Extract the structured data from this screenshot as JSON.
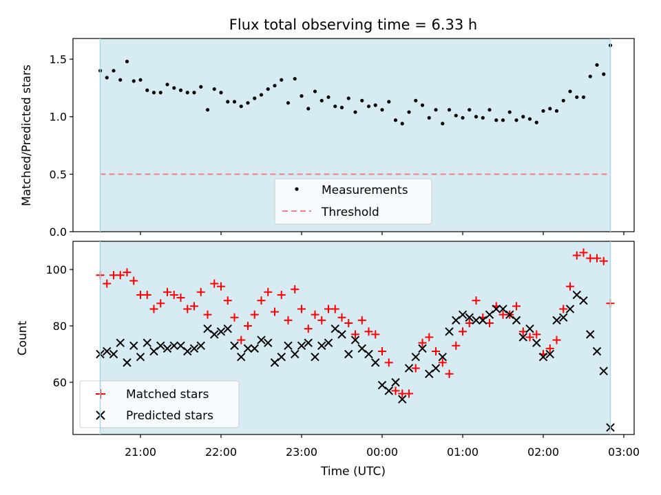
{
  "title": "Flux total observing time = 6.33 h",
  "xlabel": "Time (UTC)",
  "x_tick_labels": [
    "21:00",
    "22:00",
    "23:00",
    "00:00",
    "01:00",
    "02:00",
    "03:00"
  ],
  "colors": {
    "shade": "#add8e6",
    "threshold": "#f08080",
    "matched": "#ff0000",
    "predicted": "#000000",
    "measurements": "#000000"
  },
  "chart_data": [
    {
      "type": "scatter",
      "panel": "top",
      "ylabel": "Matched/Predicted stars",
      "ylim": [
        0,
        1.68
      ],
      "yticks": [
        0,
        0.5,
        1.0,
        1.5
      ],
      "ytick_labels": [
        "0.0",
        "0.5",
        "1.0",
        "1.5"
      ],
      "shaded_span": [
        "20:30",
        "02:50"
      ],
      "legend": {
        "placement": "lower center",
        "entries": [
          "Measurements",
          "Threshold"
        ]
      },
      "threshold": {
        "name": "Threshold",
        "value": 0.5
      },
      "series": [
        {
          "name": "Measurements",
          "x": [
            "20:30",
            "20:35",
            "20:40",
            "20:45",
            "20:50",
            "20:55",
            "21:00",
            "21:05",
            "21:10",
            "21:15",
            "21:20",
            "21:25",
            "21:30",
            "21:35",
            "21:40",
            "21:45",
            "21:50",
            "21:55",
            "22:00",
            "22:05",
            "22:10",
            "22:15",
            "22:20",
            "22:25",
            "22:30",
            "22:35",
            "22:40",
            "22:45",
            "22:50",
            "22:55",
            "23:00",
            "23:05",
            "23:10",
            "23:15",
            "23:20",
            "23:25",
            "23:30",
            "23:35",
            "23:40",
            "23:45",
            "23:50",
            "23:55",
            "00:00",
            "00:05",
            "00:10",
            "00:15",
            "00:20",
            "00:25",
            "00:30",
            "00:35",
            "00:40",
            "00:45",
            "00:50",
            "00:55",
            "01:00",
            "01:05",
            "01:10",
            "01:15",
            "01:20",
            "01:25",
            "01:30",
            "01:35",
            "01:40",
            "01:45",
            "01:50",
            "01:55",
            "02:00",
            "02:05",
            "02:10",
            "02:15",
            "02:20",
            "02:25",
            "02:30",
            "02:35",
            "02:40",
            "02:45",
            "02:50"
          ],
          "values": [
            1.4,
            1.34,
            1.4,
            1.32,
            1.48,
            1.31,
            1.32,
            1.23,
            1.21,
            1.21,
            1.28,
            1.25,
            1.23,
            1.21,
            1.21,
            1.26,
            1.06,
            1.24,
            1.21,
            1.13,
            1.13,
            1.09,
            1.12,
            1.16,
            1.19,
            1.24,
            1.27,
            1.32,
            1.12,
            1.33,
            1.18,
            1.07,
            1.22,
            1.14,
            1.17,
            1.09,
            1.08,
            1.16,
            1.04,
            1.14,
            1.09,
            1.1,
            1.06,
            1.13,
            0.97,
            0.94,
            1.04,
            1.14,
            1.1,
            0.99,
            1.06,
            0.94,
            1.06,
            1.01,
            0.99,
            1.06,
            1.0,
            0.99,
            1.06,
            0.97,
            0.97,
            1.04,
            0.97,
            1.0,
            0.98,
            0.95,
            1.05,
            1.07,
            1.05,
            1.14,
            1.22,
            1.17,
            1.17,
            1.35,
            1.45,
            1.37,
            1.62
          ]
        }
      ]
    },
    {
      "type": "scatter",
      "panel": "bottom",
      "ylabel": "Count",
      "ylim": [
        41.5,
        110
      ],
      "yticks": [
        60,
        80,
        100
      ],
      "ytick_labels": [
        "60",
        "80",
        "100"
      ],
      "shaded_span": [
        "20:30",
        "02:50"
      ],
      "legend": {
        "placement": "lower left",
        "entries": [
          "Matched stars",
          "Predicted stars"
        ]
      },
      "x": [
        "20:30",
        "20:35",
        "20:40",
        "20:45",
        "20:50",
        "20:55",
        "21:00",
        "21:05",
        "21:10",
        "21:15",
        "21:20",
        "21:25",
        "21:30",
        "21:35",
        "21:40",
        "21:45",
        "21:50",
        "21:55",
        "22:00",
        "22:05",
        "22:10",
        "22:15",
        "22:20",
        "22:25",
        "22:30",
        "22:35",
        "22:40",
        "22:45",
        "22:50",
        "22:55",
        "23:00",
        "23:05",
        "23:10",
        "23:15",
        "23:20",
        "23:25",
        "23:30",
        "23:35",
        "23:40",
        "23:45",
        "23:50",
        "23:55",
        "00:00",
        "00:05",
        "00:10",
        "00:15",
        "00:20",
        "00:25",
        "00:30",
        "00:35",
        "00:40",
        "00:45",
        "00:50",
        "00:55",
        "01:00",
        "01:05",
        "01:10",
        "01:15",
        "01:20",
        "01:25",
        "01:30",
        "01:35",
        "01:40",
        "01:45",
        "01:50",
        "01:55",
        "02:00",
        "02:05",
        "02:10",
        "02:15",
        "02:20",
        "02:25",
        "02:30",
        "02:35",
        "02:40",
        "02:45",
        "02:50"
      ],
      "series": [
        {
          "name": "Matched stars",
          "marker": "plus",
          "values": [
            98,
            95,
            98,
            98,
            99,
            96,
            91,
            91,
            86,
            88,
            92,
            91,
            90,
            86,
            87,
            92,
            84,
            95,
            94,
            89,
            83,
            75,
            80,
            84,
            89,
            92,
            85,
            91,
            82,
            93,
            86,
            79,
            84,
            82,
            86,
            86,
            83,
            81,
            77,
            82,
            78,
            77,
            71,
            67,
            57,
            56,
            56,
            65,
            74,
            76,
            71,
            67,
            63,
            73,
            78,
            81,
            89,
            83,
            81,
            87,
            84,
            84,
            87,
            78,
            76,
            77,
            70,
            72,
            75,
            86,
            94,
            105,
            106,
            104,
            104,
            103,
            88
          ]
        },
        {
          "name": "Predicted stars",
          "marker": "x",
          "values": [
            70,
            71,
            70,
            74,
            67,
            73,
            69,
            74,
            71,
            73,
            72,
            73,
            73,
            71,
            72,
            73,
            79,
            77,
            78,
            79,
            73,
            69,
            72,
            72,
            75,
            74,
            67,
            69,
            73,
            70,
            73,
            74,
            69,
            73,
            74,
            79,
            77,
            70,
            75,
            72,
            70,
            67,
            59,
            57,
            60,
            54,
            65,
            69,
            72,
            63,
            65,
            69,
            78,
            82,
            84,
            83,
            82,
            82,
            84,
            86,
            86,
            84,
            82,
            76,
            79,
            74,
            69,
            70,
            82,
            83,
            86,
            91,
            89,
            77,
            71,
            64,
            44
          ]
        }
      ]
    }
  ]
}
